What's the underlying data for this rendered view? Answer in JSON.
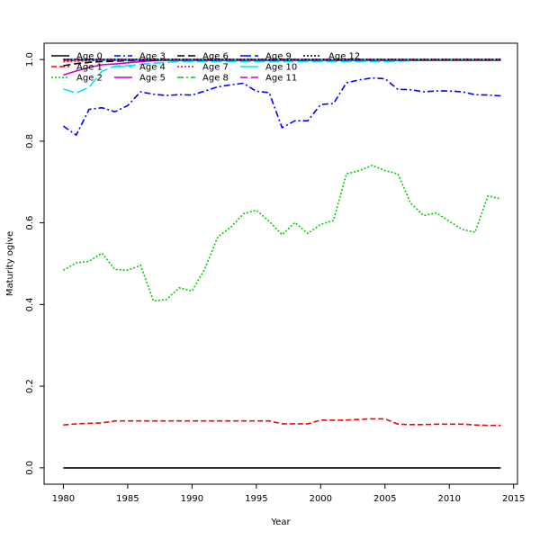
{
  "chart_data": {
    "type": "line",
    "title": "",
    "xlabel": "Year",
    "ylabel": "Maturity ogive",
    "xlim": [
      1978.5,
      2015.3
    ],
    "ylim": [
      -0.04,
      1.04
    ],
    "xticks": [
      1980,
      1985,
      1990,
      1995,
      2000,
      2005,
      2010,
      2015
    ],
    "yticks": [
      0.0,
      0.2,
      0.4,
      0.6,
      0.8,
      1.0
    ],
    "grid": false,
    "legend_position": "top-left",
    "x": [
      1980,
      1981,
      1982,
      1983,
      1984,
      1985,
      1986,
      1987,
      1988,
      1989,
      1990,
      1991,
      1992,
      1993,
      1994,
      1995,
      1996,
      1997,
      1998,
      1999,
      2000,
      2001,
      2002,
      2003,
      2004,
      2005,
      2006,
      2007,
      2008,
      2009,
      2010,
      2011,
      2012,
      2013,
      2014
    ],
    "series": [
      {
        "name": "Age 0",
        "color": "#000000",
        "dash": "",
        "values": [
          0.0,
          0.0,
          0.0,
          0.0,
          0.0,
          0.0,
          0.0,
          0.0,
          0.0,
          0.0,
          0.0,
          0.0,
          0.0,
          0.0,
          0.0,
          0.0,
          0.0,
          0.0,
          0.0,
          0.0,
          0.0,
          0.0,
          0.0,
          0.0,
          0.0,
          0.0,
          0.0,
          0.0,
          0.0,
          0.0,
          0.0,
          0.0,
          0.0,
          0.0,
          0.0
        ]
      },
      {
        "name": "Age 1",
        "color": "#ff0000",
        "dash": "6,3",
        "values": [
          0.105,
          0.108,
          0.109,
          0.11,
          0.115,
          0.115,
          0.115,
          0.115,
          0.115,
          0.115,
          0.115,
          0.115,
          0.115,
          0.115,
          0.115,
          0.115,
          0.115,
          0.108,
          0.108,
          0.108,
          0.117,
          0.117,
          0.117,
          0.119,
          0.12,
          0.12,
          0.107,
          0.106,
          0.106,
          0.107,
          0.107,
          0.107,
          0.105,
          0.104,
          0.104
        ]
      },
      {
        "name": "Age 2",
        "color": "#00cd00",
        "dash": "2,2",
        "values": [
          0.484,
          0.502,
          0.506,
          0.526,
          0.486,
          0.484,
          0.496,
          0.409,
          0.412,
          0.441,
          0.433,
          0.488,
          0.566,
          0.589,
          0.622,
          0.631,
          0.604,
          0.571,
          0.601,
          0.574,
          0.596,
          0.606,
          0.72,
          0.728,
          0.741,
          0.728,
          0.72,
          0.648,
          0.618,
          0.624,
          0.604,
          0.584,
          0.577,
          0.666,
          0.659
        ]
      },
      {
        "name": "Age 3",
        "color": "#0000ff",
        "dash": "7,3,2,3",
        "values": [
          0.837,
          0.815,
          0.878,
          0.882,
          0.872,
          0.887,
          0.921,
          0.915,
          0.912,
          0.914,
          0.913,
          0.923,
          0.933,
          0.938,
          0.942,
          0.922,
          0.919,
          0.833,
          0.85,
          0.85,
          0.89,
          0.892,
          0.943,
          0.95,
          0.955,
          0.953,
          0.927,
          0.926,
          0.921,
          0.923,
          0.923,
          0.921,
          0.914,
          0.913,
          0.911
        ]
      },
      {
        "name": "Age 4",
        "color": "#00e5ee",
        "dash": "12,4",
        "values": [
          0.928,
          0.918,
          0.932,
          0.971,
          0.984,
          0.985,
          0.988,
          0.991,
          0.993,
          0.995,
          0.995,
          0.995,
          0.995,
          0.995,
          0.995,
          0.995,
          0.995,
          0.995,
          0.995,
          0.995,
          0.995,
          0.995,
          0.995,
          0.995,
          0.995,
          0.995,
          0.996,
          0.997,
          0.998,
          0.999,
          0.999,
          0.999,
          0.999,
          0.999,
          0.999
        ]
      },
      {
        "name": "Age 5",
        "color": "#cc00cc",
        "dash": "",
        "values": [
          0.962,
          0.972,
          0.981,
          0.987,
          0.989,
          0.992,
          0.995,
          0.997,
          0.998,
          0.998,
          0.998,
          0.998,
          0.998,
          0.998,
          0.998,
          0.998,
          0.998,
          0.998,
          0.998,
          0.998,
          0.998,
          0.998,
          0.998,
          0.998,
          0.998,
          0.998,
          0.998,
          0.998,
          0.998,
          0.998,
          0.998,
          0.998,
          0.998,
          0.998,
          0.998
        ]
      },
      {
        "name": "Age 6",
        "color": "#000000",
        "dash": "8,4",
        "values": [
          0.985,
          0.99,
          0.993,
          0.995,
          0.996,
          0.997,
          0.998,
          0.998,
          0.999,
          0.999,
          0.999,
          0.999,
          0.999,
          0.999,
          0.999,
          0.999,
          0.999,
          0.999,
          0.999,
          0.999,
          0.999,
          0.999,
          0.999,
          0.999,
          0.999,
          0.999,
          0.999,
          0.999,
          0.999,
          0.999,
          0.999,
          0.999,
          0.999,
          0.999,
          0.999
        ]
      },
      {
        "name": "Age 7",
        "color": "#ff0000",
        "dash": "2,2",
        "values": [
          0.995,
          0.996,
          0.997,
          0.998,
          0.998,
          0.999,
          0.999,
          0.999,
          0.999,
          0.999,
          0.999,
          0.999,
          0.999,
          0.999,
          0.999,
          0.999,
          0.999,
          0.999,
          0.999,
          0.999,
          0.999,
          0.999,
          0.999,
          0.999,
          0.999,
          0.999,
          0.999,
          0.999,
          0.999,
          0.999,
          0.999,
          0.999,
          0.999,
          0.999,
          0.999
        ]
      },
      {
        "name": "Age 8",
        "color": "#00cd00",
        "dash": "7,3,2,3",
        "values": [
          0.998,
          0.998,
          0.999,
          0.999,
          0.999,
          0.999,
          0.999,
          0.999,
          0.999,
          0.999,
          0.999,
          0.999,
          0.999,
          0.999,
          0.999,
          0.999,
          0.999,
          0.999,
          0.999,
          0.999,
          0.999,
          0.999,
          0.999,
          0.999,
          0.999,
          0.999,
          0.999,
          0.999,
          0.999,
          0.999,
          0.999,
          0.999,
          0.999,
          0.999,
          0.999
        ]
      },
      {
        "name": "Age 9",
        "color": "#0000ff",
        "dash": "12,4",
        "values": [
          0.999,
          0.999,
          0.999,
          0.999,
          0.999,
          0.999,
          0.999,
          0.999,
          0.999,
          0.999,
          0.999,
          0.999,
          0.999,
          0.999,
          0.999,
          0.999,
          0.999,
          0.999,
          0.999,
          0.999,
          0.999,
          0.999,
          0.999,
          0.999,
          0.999,
          0.999,
          0.999,
          0.999,
          0.999,
          0.999,
          0.999,
          0.999,
          0.999,
          0.999,
          0.999
        ]
      },
      {
        "name": "Age 10",
        "color": "#00e5ee",
        "dash": "",
        "values": [
          1.0,
          1.0,
          1.0,
          1.0,
          1.0,
          1.0,
          1.0,
          1.0,
          1.0,
          1.0,
          1.0,
          1.0,
          1.0,
          1.0,
          1.0,
          1.0,
          1.0,
          1.0,
          1.0,
          1.0,
          1.0,
          1.0,
          1.0,
          1.0,
          1.0,
          1.0,
          1.0,
          1.0,
          1.0,
          1.0,
          1.0,
          1.0,
          1.0,
          1.0,
          1.0
        ]
      },
      {
        "name": "Age 11",
        "color": "#cc00cc",
        "dash": "8,4",
        "values": [
          1.0,
          1.0,
          1.0,
          1.0,
          1.0,
          1.0,
          1.0,
          1.0,
          1.0,
          1.0,
          1.0,
          1.0,
          1.0,
          1.0,
          1.0,
          1.0,
          1.0,
          1.0,
          1.0,
          1.0,
          1.0,
          1.0,
          1.0,
          1.0,
          1.0,
          1.0,
          1.0,
          1.0,
          1.0,
          1.0,
          1.0,
          1.0,
          1.0,
          1.0,
          1.0
        ]
      },
      {
        "name": "Age 12",
        "color": "#000000",
        "dash": "2,2",
        "values": [
          1.0,
          1.0,
          1.0,
          1.0,
          1.0,
          1.0,
          1.0,
          1.0,
          1.0,
          1.0,
          1.0,
          1.0,
          1.0,
          1.0,
          1.0,
          1.0,
          1.0,
          1.0,
          1.0,
          1.0,
          1.0,
          1.0,
          1.0,
          1.0,
          1.0,
          1.0,
          1.0,
          1.0,
          1.0,
          1.0,
          1.0,
          1.0,
          1.0,
          1.0,
          1.0
        ]
      }
    ]
  }
}
